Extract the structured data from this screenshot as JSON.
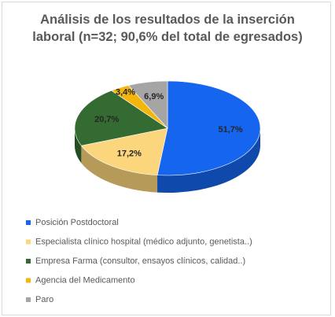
{
  "chart_data": {
    "type": "pie",
    "title": "Análisis de los resultados de la inserción laboral (n=32; 90,6% del total de egresados)",
    "categories": [
      "Posición Postdoctoral",
      "Especialista clínico hospital (médico adjunto, genetista..)",
      "Empresa Farma (consultor, ensayos clínicos, calidad..)",
      "Agencia del Medicamento",
      "Paro"
    ],
    "values": [
      51.7,
      17.2,
      20.7,
      3.4,
      6.9
    ],
    "value_labels": [
      "51,7%",
      "17,2%",
      "20,7%",
      "3,4%",
      "6,9%"
    ],
    "colors": [
      "#1565ee",
      "#fbd67c",
      "#336b32",
      "#f4b60c",
      "#a5a5a5"
    ],
    "legend": "bottom"
  }
}
